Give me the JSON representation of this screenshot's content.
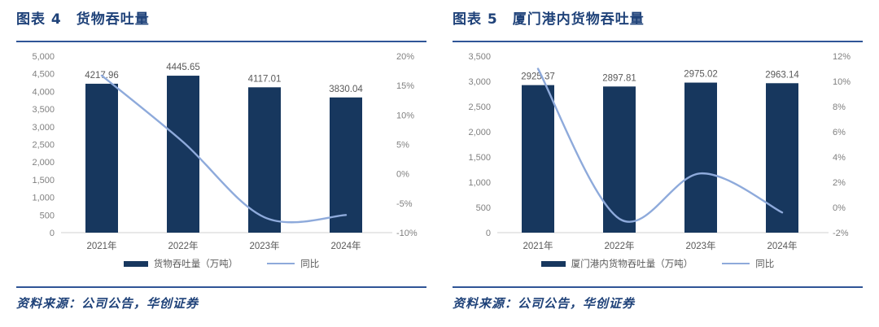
{
  "colors": {
    "bar": "#17375E",
    "line": "#8EAADB",
    "title_text": "#1F4279",
    "rule": "#2F5597",
    "axis_tick_text": "#808080",
    "category_text": "#595959",
    "data_label_text": "#595959",
    "legend_text": "#595959",
    "axis_line": "#D9D9D9",
    "source_text": "#1F4279",
    "background": "#FFFFFF"
  },
  "chart_data": [
    {
      "type": "bar",
      "subtype": "bar+line combo, dual axis",
      "title": "图表 4　货物吞吐量",
      "categories": [
        "2021年",
        "2022年",
        "2023年",
        "2024年"
      ],
      "series": [
        {
          "name": "货物吞吐量（万吨）",
          "type": "bar",
          "axis": "left",
          "values": [
            4217.96,
            4445.65,
            4117.01,
            3830.04
          ],
          "data_labels": [
            "4217.96",
            "4445.65",
            "4117.01",
            "3830.04"
          ]
        },
        {
          "name": "同比",
          "type": "line",
          "axis": "right",
          "smoothed": true,
          "values_percent": [
            16.7,
            5.4,
            -7.4,
            -7.0
          ]
        }
      ],
      "left_axis": {
        "min": 0,
        "max": 5000,
        "step": 500,
        "tick_labels": [
          "5,000",
          "4,500",
          "4,000",
          "3,500",
          "3,000",
          "2,500",
          "2,000",
          "1,500",
          "1,000",
          "500",
          "0"
        ]
      },
      "right_axis": {
        "min": -10,
        "max": 20,
        "step": 5,
        "tick_labels": [
          "20%",
          "15%",
          "10%",
          "5%",
          "0%",
          "-5%",
          "-10%"
        ]
      },
      "grid": false,
      "legend_position": "bottom",
      "source": "资料来源：公司公告，华创证券"
    },
    {
      "type": "bar",
      "subtype": "bar+line combo, dual axis",
      "title": "图表 5　厦门港内货物吞吐量",
      "categories": [
        "2021年",
        "2022年",
        "2023年",
        "2024年"
      ],
      "series": [
        {
          "name": "厦门港内货物吞吐量（万吨）",
          "type": "bar",
          "axis": "left",
          "values": [
            2925.37,
            2897.81,
            2975.02,
            2963.14
          ],
          "data_labels": [
            "2925.37",
            "2897.81",
            "2975.02",
            "2963.14"
          ]
        },
        {
          "name": "同比",
          "type": "line",
          "axis": "right",
          "smoothed": true,
          "values_percent": [
            11.0,
            -0.9,
            2.7,
            -0.4
          ]
        }
      ],
      "left_axis": {
        "min": 0,
        "max": 3500,
        "step": 500,
        "tick_labels": [
          "3,500",
          "3,000",
          "2,500",
          "2,000",
          "1,500",
          "1,000",
          "500",
          "0"
        ]
      },
      "right_axis": {
        "min": -2,
        "max": 12,
        "step": 2,
        "tick_labels": [
          "12%",
          "10%",
          "8%",
          "6%",
          "4%",
          "2%",
          "0%",
          "-2%"
        ]
      },
      "grid": false,
      "legend_position": "bottom",
      "source": "资料来源：公司公告，华创证券"
    }
  ]
}
